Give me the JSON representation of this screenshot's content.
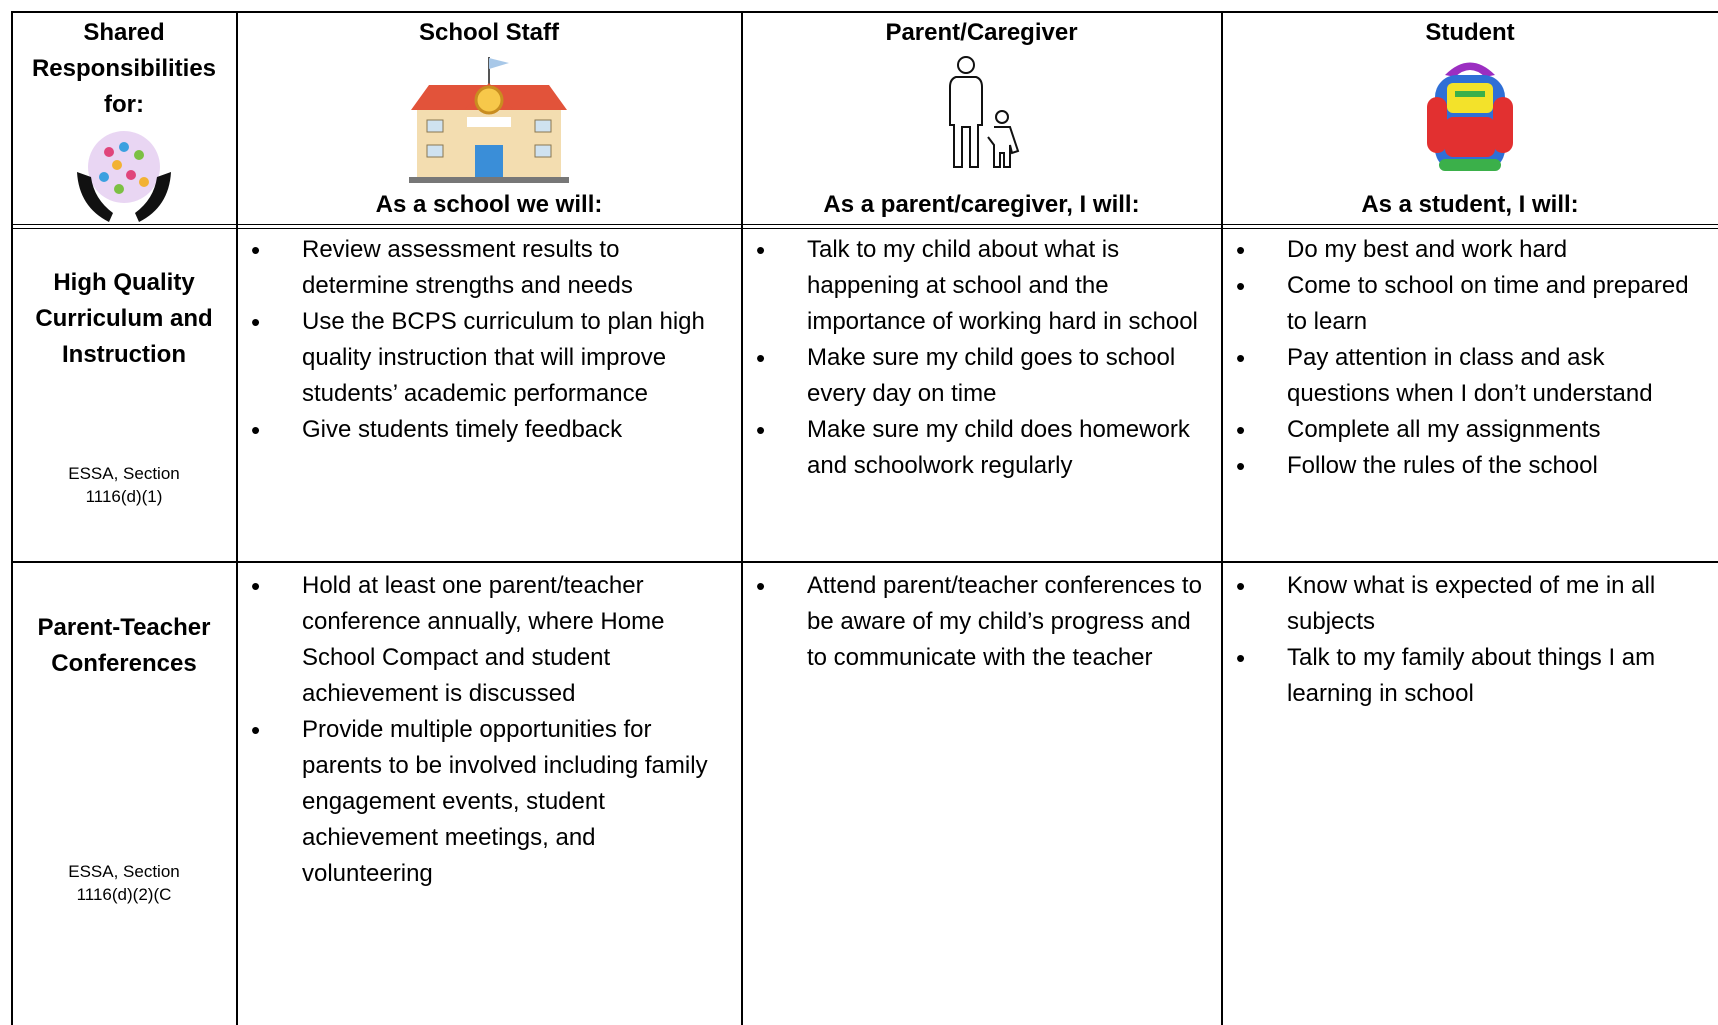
{
  "header": {
    "corner": "Shared Responsibilities for:",
    "columns": [
      {
        "title": "School Staff",
        "subtitle": "As a school we will:"
      },
      {
        "title": "Parent/Caregiver",
        "subtitle": "As a parent/caregiver, I will:"
      },
      {
        "title": "Student",
        "subtitle": "As a student, I will:"
      }
    ]
  },
  "rows": [
    {
      "title": "High Quality Curriculum and Instruction",
      "note": "ESSA, Section 1116(d)(1)",
      "cells": [
        [
          "Review assessment results to determine strengths and needs",
          "Use the BCPS curriculum to plan high quality instruction that will improve students’ academic performance",
          "Give students timely feedback"
        ],
        [
          "Talk to my child about what is happening at school and the importance of working hard in school",
          "Make sure my child goes to school every day on time",
          "Make sure my child does homework and schoolwork regularly"
        ],
        [
          "Do my best and work hard",
          "Come to school on time and prepared to learn",
          "Pay attention in class and ask questions when I don’t understand",
          "Complete all my assignments",
          "Follow the rules of the school"
        ]
      ]
    },
    {
      "title": "Parent-Teacher Conferences",
      "note": "ESSA, Section 1116(d)(2)(C",
      "cells": [
        [
          "Hold at least one parent/teacher conference annually, where Home School Compact and student achievement is discussed",
          "Provide multiple opportunities for parents to be involved including family engagement events, student achievement meetings, and volunteering"
        ],
        [
          "Attend parent/teacher conferences to be aware of my child’s progress and to communicate with the teacher"
        ],
        [
          "Know what is expected of me in all subjects",
          "Talk to my family about things I am learning in school"
        ]
      ]
    }
  ]
}
